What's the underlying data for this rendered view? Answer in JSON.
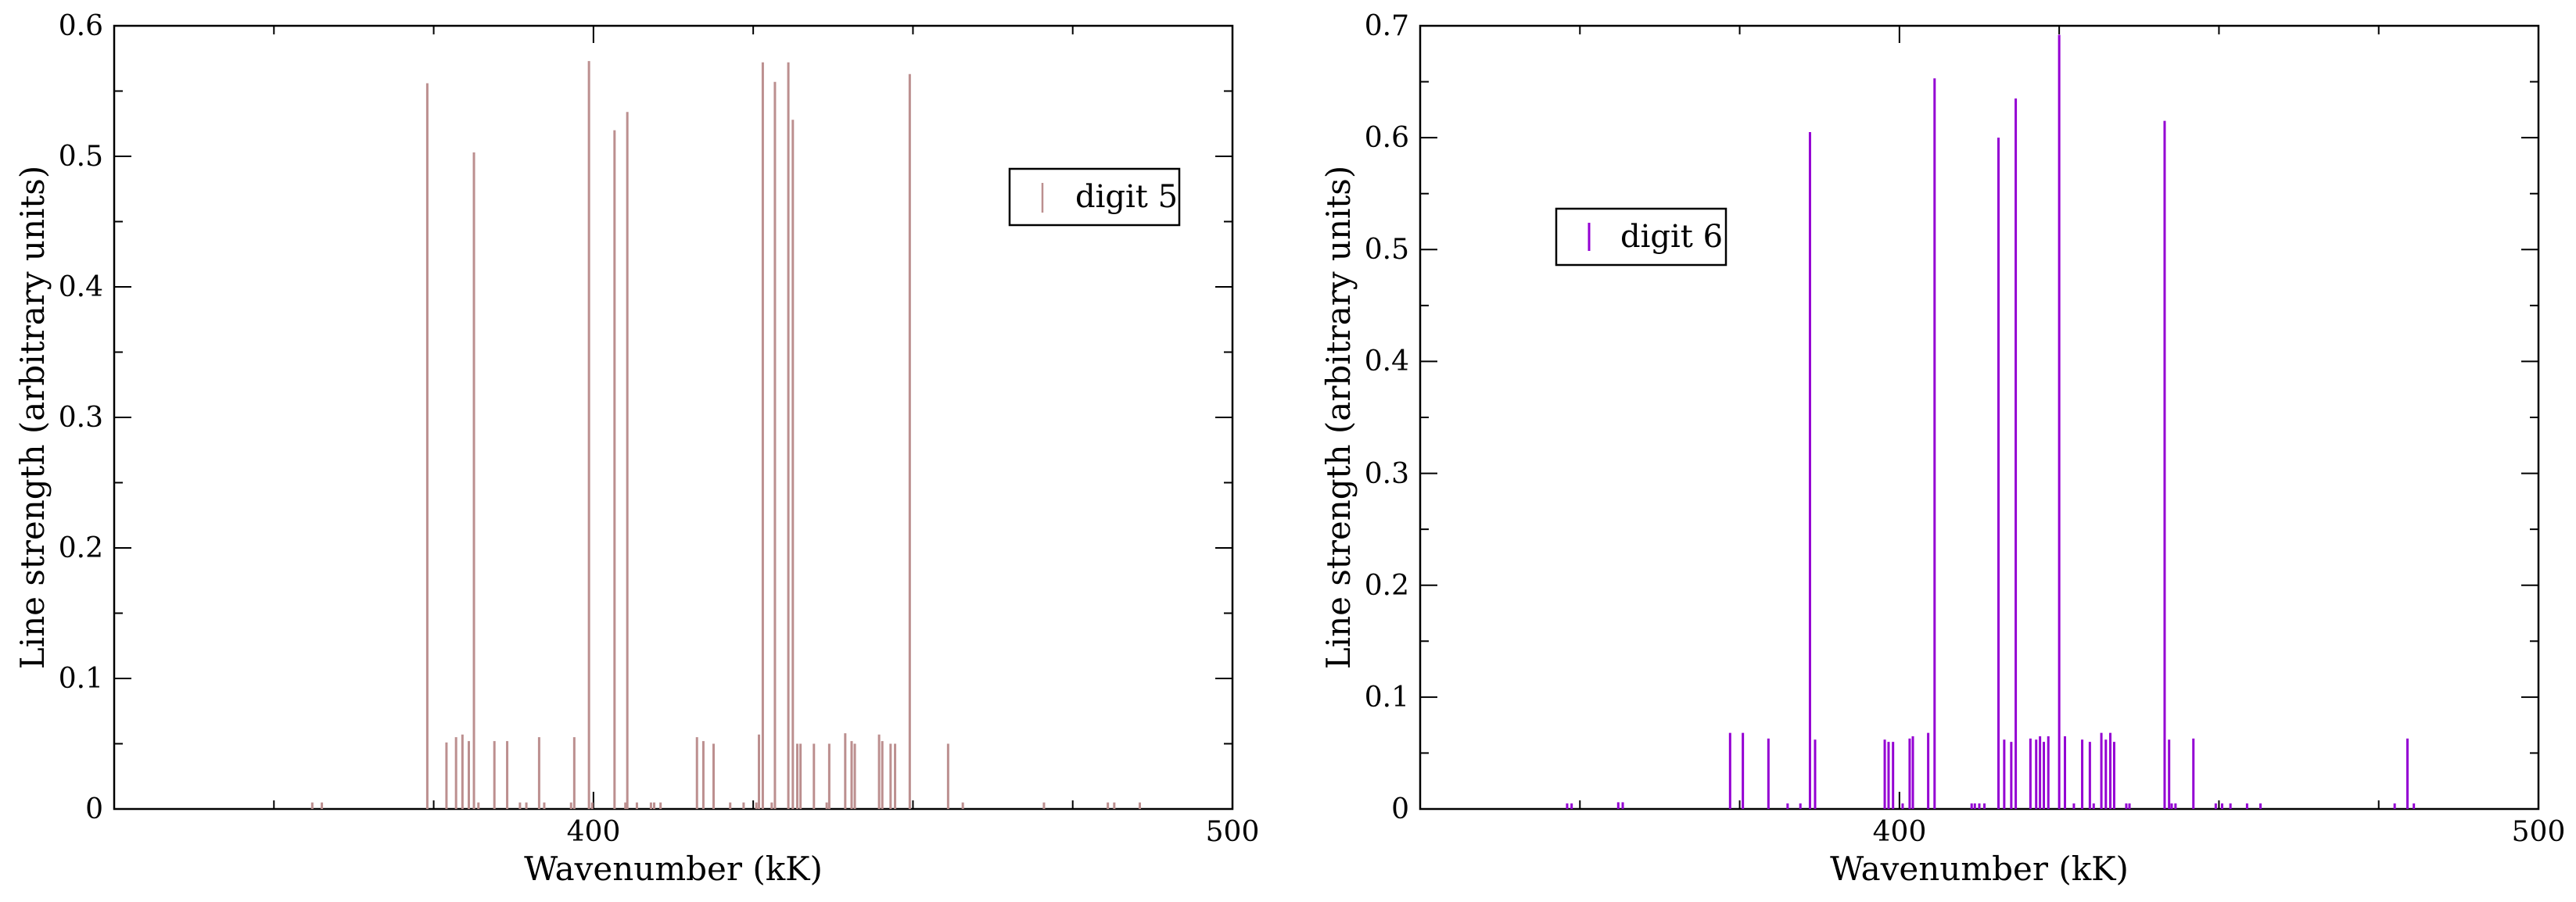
{
  "chart_data": [
    {
      "type": "bar",
      "title": "",
      "xlabel": "Wavenumber (kK)",
      "ylabel": "Line strength (arbitrary units)",
      "xlim": [
        325,
        500
      ],
      "ylim": [
        0,
        0.6
      ],
      "xticks": [
        400,
        500
      ],
      "xtick_labels": [
        "400",
        "500"
      ],
      "yticks": [
        0,
        0.1,
        0.2,
        0.3,
        0.4,
        0.5,
        0.6
      ],
      "ytick_labels": [
        "0",
        "0.1",
        "0.2",
        "0.3",
        "0.4",
        "0.5",
        "0.6"
      ],
      "grid": false,
      "legend_position": "top-right",
      "color": "#bc8f8f",
      "series": [
        {
          "name": "digit 5",
          "x": [
            356,
            357.5,
            374,
            377,
            378.5,
            379.5,
            380.5,
            381.3,
            382,
            384.5,
            386.5,
            388.5,
            389.5,
            391.5,
            392.3,
            396.5,
            397,
            399.3,
            399.8,
            403.3,
            405,
            405.3,
            406.8,
            409,
            409.5,
            410.5,
            416.2,
            417.2,
            418.8,
            421.4,
            423.5,
            425.5,
            425.9,
            426.5,
            427.9,
            428.4,
            430.5,
            431.2,
            431.9,
            432.4,
            434.5,
            436.5,
            436.9,
            439.4,
            440.4,
            440.9,
            444.7,
            445.2,
            446.5,
            447.2,
            449.5,
            455.5,
            457.8,
            470.5,
            480.5,
            481.5,
            485.5
          ],
          "values": [
            0.005,
            0.005,
            0.556,
            0.051,
            0.055,
            0.057,
            0.052,
            0.503,
            0.005,
            0.052,
            0.052,
            0.005,
            0.005,
            0.055,
            0.005,
            0.005,
            0.055,
            0.573,
            0.005,
            0.52,
            0.005,
            0.534,
            0.005,
            0.005,
            0.005,
            0.005,
            0.055,
            0.052,
            0.05,
            0.005,
            0.005,
            0.005,
            0.057,
            0.572,
            0.005,
            0.557,
            0.572,
            0.528,
            0.05,
            0.05,
            0.05,
            0.005,
            0.05,
            0.058,
            0.052,
            0.05,
            0.057,
            0.052,
            0.05,
            0.05,
            0.563,
            0.05,
            0.005,
            0.005,
            0.005,
            0.005,
            0.005
          ]
        }
      ]
    },
    {
      "type": "bar",
      "title": "",
      "xlabel": "Wavenumber (kK)",
      "ylabel": "Line strength (arbitrary units)",
      "xlim": [
        325,
        500
      ],
      "ylim": [
        0,
        0.7
      ],
      "xticks": [
        400,
        500
      ],
      "xtick_labels": [
        "400",
        "500"
      ],
      "yticks": [
        0,
        0.1,
        0.2,
        0.3,
        0.4,
        0.5,
        0.6,
        0.7
      ],
      "ytick_labels": [
        "0",
        "0.1",
        "0.2",
        "0.3",
        "0.4",
        "0.5",
        "0.6",
        "0.7"
      ],
      "grid": false,
      "legend_position": "top-left",
      "color": "#9400d3",
      "series": [
        {
          "name": "digit 6",
          "x": [
            348,
            348.7,
            356,
            356.7,
            373.5,
            375.5,
            379.5,
            382.5,
            384.5,
            386,
            386.8,
            397.7,
            398.3,
            399,
            400.5,
            401.6,
            402.1,
            404.5,
            405.5,
            411.3,
            411.8,
            412.5,
            413.3,
            415.5,
            416.4,
            417.5,
            418.2,
            420.5,
            421.4,
            422,
            422.6,
            423.3,
            425,
            425.9,
            427.3,
            428.6,
            429.8,
            430.4,
            431.6,
            432.3,
            433,
            433.6,
            435.5,
            436,
            441.5,
            442.2,
            442.6,
            443.2,
            446,
            449.5,
            450.5,
            451.8,
            454.4,
            456.5,
            477.5,
            479.5,
            480.5
          ],
          "values": [
            0.005,
            0.005,
            0.006,
            0.006,
            0.068,
            0.068,
            0.063,
            0.005,
            0.005,
            0.605,
            0.062,
            0.062,
            0.06,
            0.06,
            0.005,
            0.063,
            0.065,
            0.068,
            0.653,
            0.005,
            0.005,
            0.005,
            0.005,
            0.6,
            0.062,
            0.06,
            0.635,
            0.063,
            0.062,
            0.065,
            0.06,
            0.065,
            0.692,
            0.065,
            0.005,
            0.062,
            0.06,
            0.005,
            0.068,
            0.062,
            0.068,
            0.06,
            0.005,
            0.005,
            0.615,
            0.062,
            0.005,
            0.005,
            0.063,
            0.005,
            0.005,
            0.005,
            0.005,
            0.005,
            0.005,
            0.063,
            0.005
          ]
        }
      ]
    }
  ]
}
